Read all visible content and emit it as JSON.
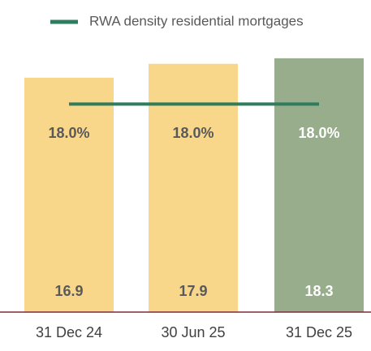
{
  "chart_data": {
    "type": "bar",
    "categories": [
      "31 Dec 24",
      "30 Jun 25",
      "31 Dec 25"
    ],
    "values": [
      16.9,
      17.9,
      18.3
    ],
    "colors": [
      "#f9d78a",
      "#f9d78a",
      "#97ad8c"
    ],
    "label_colors": [
      "#595959",
      "#595959",
      "#ffffff"
    ],
    "ylim": [
      0,
      22.5
    ],
    "series": [
      {
        "name": "RWA density residential mortgages",
        "color": "#2e7d5e",
        "type": "line",
        "axis": "y2",
        "values": [
          18.0,
          18.0,
          18.0
        ],
        "value_labels": [
          "18.0%",
          "18.0%",
          "18.0%"
        ]
      }
    ],
    "y2lim": [
      0,
      27
    ],
    "axis_color": "#7b2c3a"
  }
}
